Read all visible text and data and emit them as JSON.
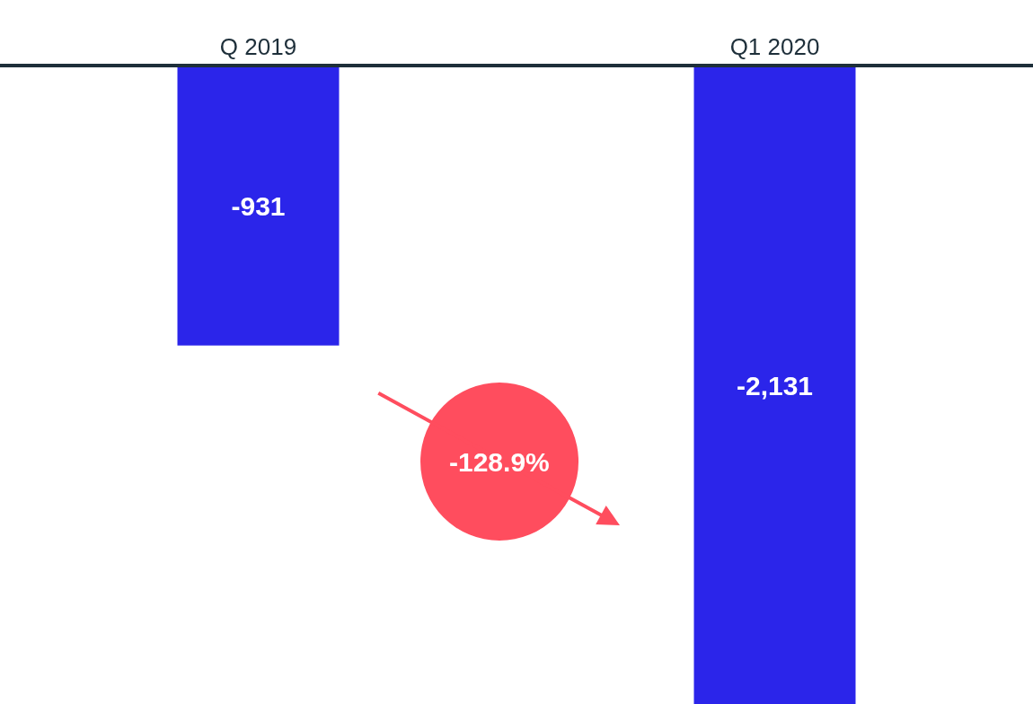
{
  "chart_data": {
    "type": "bar",
    "categories": [
      "Q 2019",
      "Q1 2020"
    ],
    "values": [
      -931,
      -2131
    ],
    "color": "#2b25ea",
    "ylim": [
      -2131,
      0
    ],
    "value_labels": [
      "-931",
      "-2,131"
    ],
    "tick_labels": "x",
    "annotations": [
      "-128.9%"
    ]
  }
}
